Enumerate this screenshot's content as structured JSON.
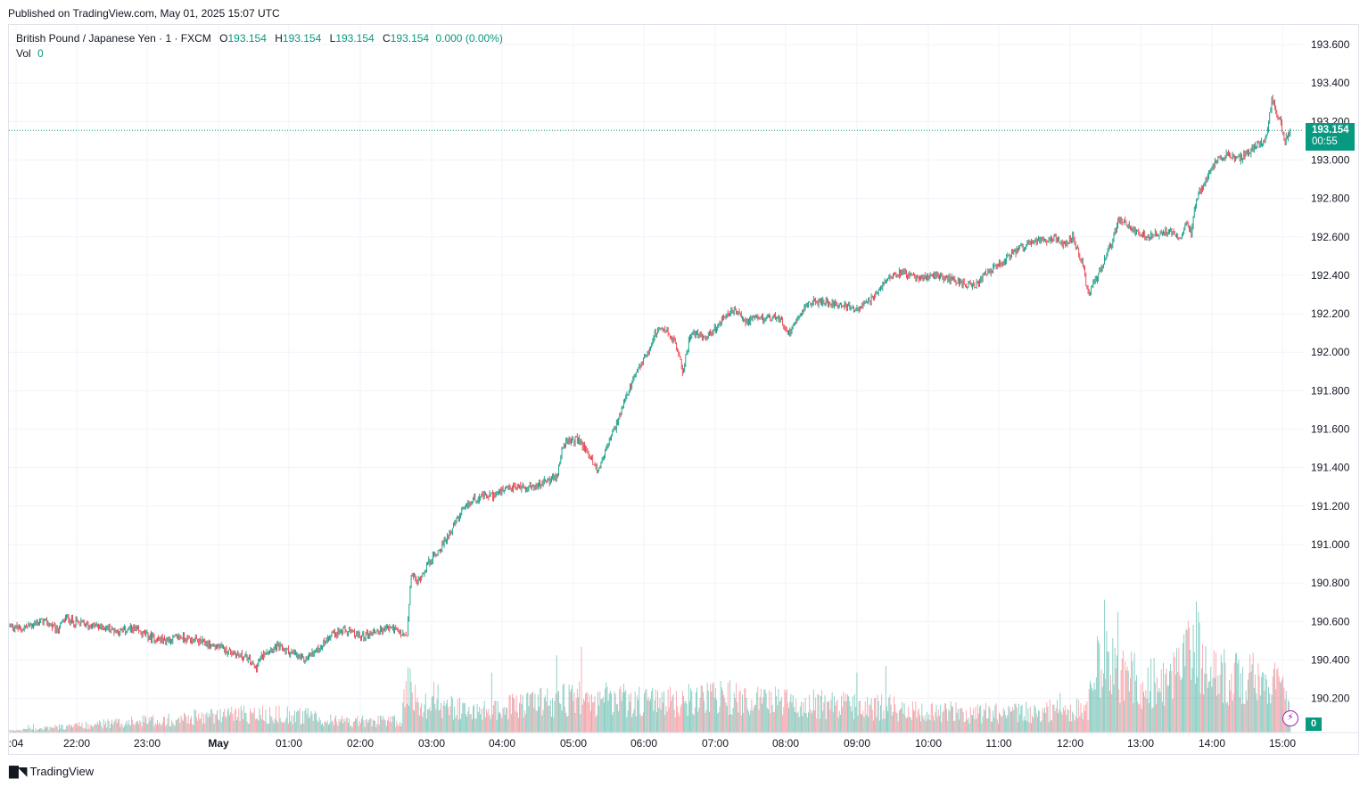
{
  "header": {
    "published": "Published on TradingView.com, May 01, 2025 15:07 UTC"
  },
  "legend": {
    "symbol": "British Pound / Japanese Yen · 1 · FXCM",
    "open_label": "O",
    "open": "193.154",
    "high_label": "H",
    "high": "193.154",
    "low_label": "L",
    "low": "193.154",
    "close_label": "C",
    "close": "193.154",
    "change": "0.000 (0.00%)",
    "vol_label": "Vol",
    "vol": "0"
  },
  "price_badge": {
    "price": "193.154",
    "countdown": "00:55"
  },
  "volume_badge": "0",
  "footer": {
    "brand": "TradingView"
  },
  "colors": {
    "up": "#089981",
    "down": "#f23645",
    "grid": "#f0f3fa",
    "lightning": "#9c27b0"
  },
  "icons": {
    "brand": "tradingview-logo-icon",
    "alert": "lightning-icon"
  },
  "chart_data": {
    "type": "candlestick",
    "symbol": "GBP/JPY",
    "interval": "1 minute",
    "y_axis": {
      "ticks": [
        "193.600",
        "193.400",
        "193.200",
        "193.000",
        "192.800",
        "192.600",
        "192.400",
        "192.200",
        "192.000",
        "191.800",
        "191.600",
        "191.400",
        "191.200",
        "191.000",
        "190.800",
        "190.600",
        "190.400",
        "190.200"
      ],
      "ylim": [
        190.05,
        193.68
      ]
    },
    "x_axis": {
      "ticks": [
        ":04",
        "22:00",
        "23:00",
        "May",
        "01:00",
        "02:00",
        "03:00",
        "04:00",
        "05:00",
        "06:00",
        "07:00",
        "08:00",
        "09:00",
        "10:00",
        "11:00",
        "12:00",
        "13:00",
        "14:00",
        "15:00"
      ]
    },
    "grid": true,
    "last_price": 193.154,
    "price_path": [
      [
        0,
        190.58
      ],
      [
        10,
        190.56
      ],
      [
        20,
        190.58
      ],
      [
        30,
        190.6
      ],
      [
        38,
        190.59
      ],
      [
        45,
        190.55
      ],
      [
        55,
        190.62
      ],
      [
        62,
        190.6
      ],
      [
        75,
        190.58
      ],
      [
        90,
        190.57
      ],
      [
        105,
        190.55
      ],
      [
        120,
        190.56
      ],
      [
        135,
        190.52
      ],
      [
        150,
        190.5
      ],
      [
        165,
        190.52
      ],
      [
        180,
        190.5
      ],
      [
        200,
        190.47
      ],
      [
        215,
        190.44
      ],
      [
        230,
        190.41
      ],
      [
        238,
        190.36
      ],
      [
        248,
        190.45
      ],
      [
        260,
        190.47
      ],
      [
        272,
        190.44
      ],
      [
        285,
        190.4
      ],
      [
        300,
        190.46
      ],
      [
        312,
        190.54
      ],
      [
        325,
        190.55
      ],
      [
        340,
        190.52
      ],
      [
        355,
        190.55
      ],
      [
        370,
        190.57
      ],
      [
        380,
        190.53
      ],
      [
        385,
        190.52
      ],
      [
        389,
        190.85
      ],
      [
        395,
        190.8
      ],
      [
        405,
        190.9
      ],
      [
        420,
        191.0
      ],
      [
        430,
        191.1
      ],
      [
        440,
        191.18
      ],
      [
        450,
        191.24
      ],
      [
        470,
        191.26
      ],
      [
        490,
        191.3
      ],
      [
        510,
        191.3
      ],
      [
        520,
        191.33
      ],
      [
        530,
        191.35
      ],
      [
        536,
        191.52
      ],
      [
        550,
        191.55
      ],
      [
        560,
        191.48
      ],
      [
        570,
        191.38
      ],
      [
        578,
        191.5
      ],
      [
        590,
        191.65
      ],
      [
        600,
        191.8
      ],
      [
        610,
        191.92
      ],
      [
        620,
        192.02
      ],
      [
        625,
        192.1
      ],
      [
        635,
        192.12
      ],
      [
        645,
        192.05
      ],
      [
        652,
        191.9
      ],
      [
        660,
        192.1
      ],
      [
        675,
        192.08
      ],
      [
        690,
        192.16
      ],
      [
        700,
        192.22
      ],
      [
        715,
        192.16
      ],
      [
        730,
        192.18
      ],
      [
        745,
        192.18
      ],
      [
        755,
        192.1
      ],
      [
        765,
        192.2
      ],
      [
        775,
        192.26
      ],
      [
        790,
        192.26
      ],
      [
        805,
        192.25
      ],
      [
        818,
        192.22
      ],
      [
        830,
        192.25
      ],
      [
        840,
        192.3
      ],
      [
        852,
        192.4
      ],
      [
        865,
        192.42
      ],
      [
        880,
        192.38
      ],
      [
        895,
        192.4
      ],
      [
        910,
        192.38
      ],
      [
        925,
        192.36
      ],
      [
        935,
        192.34
      ],
      [
        945,
        192.4
      ],
      [
        958,
        192.45
      ],
      [
        970,
        192.5
      ],
      [
        985,
        192.56
      ],
      [
        1000,
        192.58
      ],
      [
        1012,
        192.6
      ],
      [
        1022,
        192.56
      ],
      [
        1030,
        192.6
      ],
      [
        1040,
        192.45
      ],
      [
        1045,
        192.3
      ],
      [
        1055,
        192.4
      ],
      [
        1062,
        192.5
      ],
      [
        1070,
        192.6
      ],
      [
        1075,
        192.7
      ],
      [
        1085,
        192.65
      ],
      [
        1100,
        192.6
      ],
      [
        1115,
        192.62
      ],
      [
        1125,
        192.63
      ],
      [
        1135,
        192.6
      ],
      [
        1140,
        192.68
      ],
      [
        1145,
        192.62
      ],
      [
        1150,
        192.8
      ],
      [
        1160,
        192.9
      ],
      [
        1170,
        193.0
      ],
      [
        1180,
        193.03
      ],
      [
        1190,
        193.0
      ],
      [
        1200,
        193.04
      ],
      [
        1210,
        193.08
      ],
      [
        1218,
        193.12
      ],
      [
        1223,
        193.31
      ],
      [
        1230,
        193.22
      ],
      [
        1236,
        193.1
      ],
      [
        1241,
        193.154
      ]
    ],
    "volume_path": [
      [
        0,
        1
      ],
      [
        100,
        5
      ],
      [
        230,
        10
      ],
      [
        280,
        9
      ],
      [
        320,
        6
      ],
      [
        380,
        6
      ],
      [
        385,
        28
      ],
      [
        395,
        15
      ],
      [
        460,
        11
      ],
      [
        540,
        18
      ],
      [
        640,
        16
      ],
      [
        700,
        18
      ],
      [
        760,
        15
      ],
      [
        820,
        14
      ],
      [
        880,
        12
      ],
      [
        940,
        10
      ],
      [
        1000,
        11
      ],
      [
        1045,
        13
      ],
      [
        1055,
        40
      ],
      [
        1075,
        30
      ],
      [
        1100,
        26
      ],
      [
        1125,
        25
      ],
      [
        1150,
        45
      ],
      [
        1160,
        30
      ],
      [
        1200,
        28
      ],
      [
        1230,
        24
      ],
      [
        1242,
        12
      ]
    ]
  }
}
